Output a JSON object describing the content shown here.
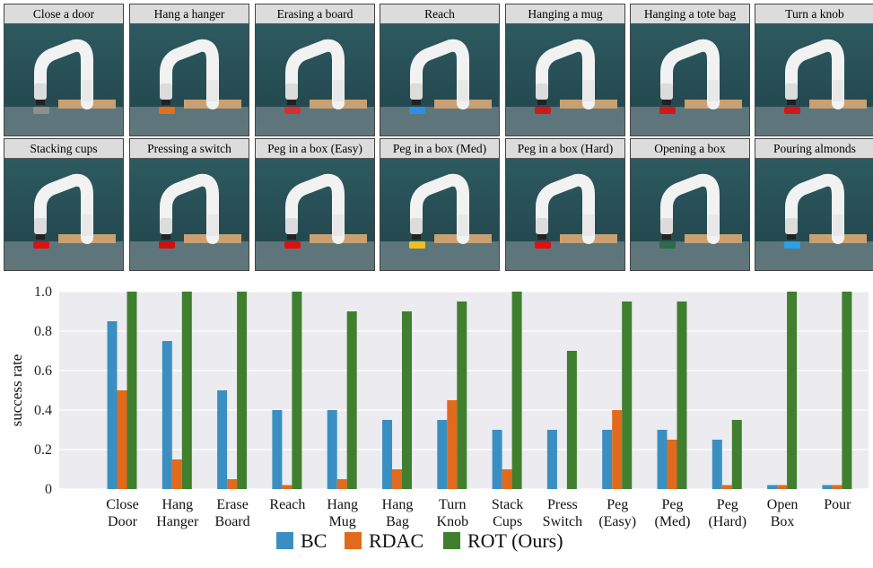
{
  "tasks": [
    "Close a door",
    "Hang a hanger",
    "Erasing a board",
    "Reach",
    "Hanging a mug",
    "Hanging a tote bag",
    "Turn a knob",
    "Stacking cups",
    "Pressing a switch",
    "Peg in a box (Easy)",
    "Peg in a box (Med)",
    "Peg in a box (Hard)",
    "Opening a box",
    "Pouring almonds"
  ],
  "colors": {
    "BC": "#3a8fc2",
    "RDAC": "#e26a1c",
    "ROT": "#3f7f2e",
    "grid": "#c8c8c8",
    "plot_bg": "#ebebf0"
  },
  "chart_data": {
    "type": "bar",
    "ylabel": "success rate",
    "ylim": [
      0,
      1.0
    ],
    "yticks": [
      "0",
      "0.2",
      "0.4",
      "0.6",
      "0.8",
      "1.0"
    ],
    "grid": true,
    "legend_position": "bottom-center",
    "categories": [
      [
        "Close",
        "Door"
      ],
      [
        "Hang",
        "Hanger"
      ],
      [
        "Erase",
        "Board"
      ],
      [
        "Reach"
      ],
      [
        "Hang",
        "Mug"
      ],
      [
        "Hang",
        "Bag"
      ],
      [
        "Turn",
        "Knob"
      ],
      [
        "Stack",
        "Cups"
      ],
      [
        "Press",
        "Switch"
      ],
      [
        "Peg",
        "(Easy)"
      ],
      [
        "Peg",
        "(Med)"
      ],
      [
        "Peg",
        "(Hard)"
      ],
      [
        "Open",
        "Box"
      ],
      [
        "Pour"
      ]
    ],
    "series": [
      {
        "name": "BC",
        "values": [
          0.85,
          0.75,
          0.5,
          0.4,
          0.4,
          0.35,
          0.35,
          0.3,
          0.3,
          0.3,
          0.3,
          0.25,
          0.02,
          0.02
        ]
      },
      {
        "name": "RDAC",
        "values": [
          0.5,
          0.15,
          0.05,
          0.02,
          0.05,
          0.1,
          0.45,
          0.1,
          0.0,
          0.4,
          0.25,
          0.02,
          0.02,
          0.02
        ]
      },
      {
        "name": "ROT (Ours)",
        "values": [
          1.0,
          1.0,
          1.0,
          1.0,
          0.9,
          0.9,
          0.95,
          1.0,
          0.7,
          0.95,
          0.95,
          0.35,
          1.0,
          1.0
        ]
      }
    ]
  }
}
